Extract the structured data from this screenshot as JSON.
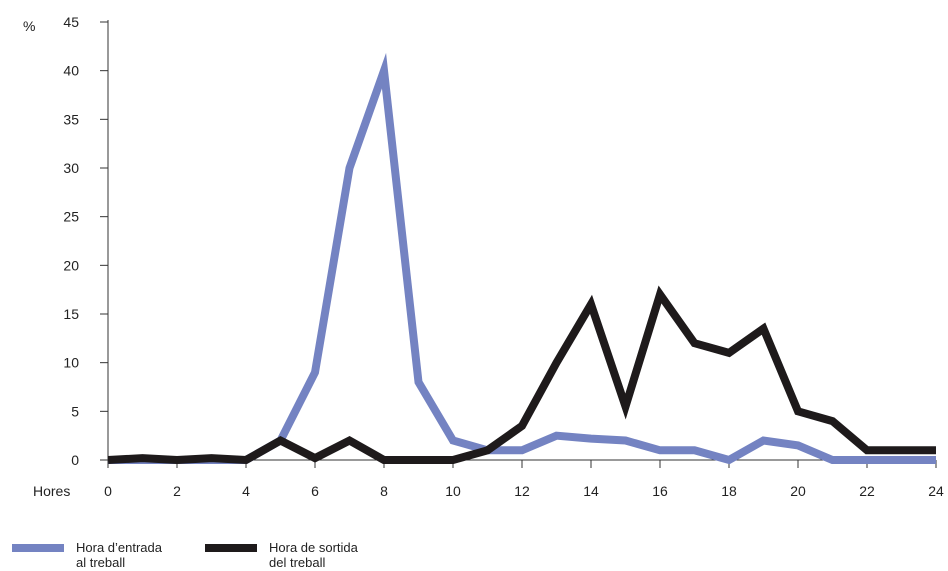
{
  "chart_data": {
    "type": "line",
    "ylabel": "%",
    "xlabel": "Hores",
    "xlim": [
      0,
      24
    ],
    "ylim": [
      0,
      45
    ],
    "xticks": [
      "0",
      "2",
      "4",
      "6",
      "8",
      "10",
      "12",
      "14",
      "16",
      "18",
      "20",
      "22",
      "24"
    ],
    "yticks": [
      "0",
      "5",
      "10",
      "15",
      "20",
      "25",
      "30",
      "35",
      "40",
      "45"
    ],
    "grid": false,
    "legend_position": "bottom-left",
    "series": [
      {
        "name": "Hora d’entrada al treball",
        "name_lines": [
          "Hora d’entrada",
          "al treball"
        ],
        "color": "#7483C2",
        "x": [
          0,
          1,
          2,
          3,
          4,
          5,
          6,
          7,
          8,
          9,
          10,
          11,
          12,
          13,
          14,
          15,
          16,
          17,
          18,
          19,
          20,
          21,
          22,
          23,
          24
        ],
        "values": [
          0,
          0,
          0,
          0,
          0,
          2,
          9,
          30,
          40,
          8,
          2,
          1,
          1,
          2.5,
          2.2,
          2,
          1,
          1,
          0,
          2,
          1.5,
          0,
          0,
          0,
          0
        ]
      },
      {
        "name": "Hora de sortida del treball",
        "name_lines": [
          "Hora de sortida",
          "del treball"
        ],
        "color": "#1E1A1B",
        "x": [
          0,
          1,
          2,
          3,
          4,
          5,
          6,
          7,
          8,
          9,
          10,
          11,
          12,
          13,
          14,
          15,
          16,
          17,
          18,
          19,
          20,
          21,
          22,
          23,
          24
        ],
        "values": [
          0,
          0.2,
          0,
          0.2,
          0,
          2,
          0.2,
          2,
          0,
          0,
          0,
          1,
          3.5,
          10,
          16,
          5.5,
          17,
          12,
          11,
          13.5,
          5,
          4,
          1,
          1,
          1
        ]
      }
    ]
  }
}
